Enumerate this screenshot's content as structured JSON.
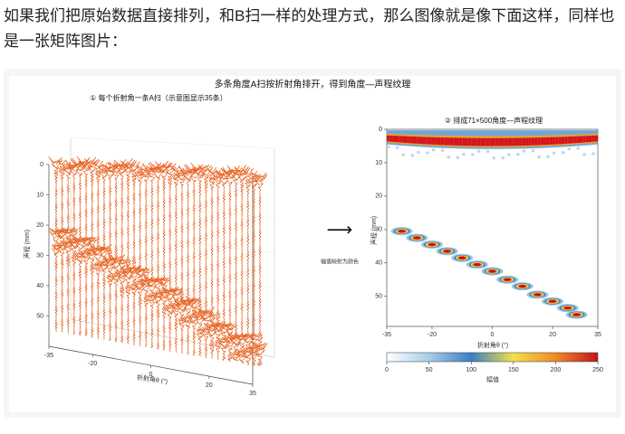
{
  "paragraph": "如果我们把原始数据直接排列，和B扫一样的处理方式，那么图像就是像下面这样，同样也是一张矩阵图片：",
  "figure": {
    "title": "多条角度A扫按折射角排开，得到角度—声程纹理",
    "left_panel": {
      "subtitle": "① 每个折射角一条A扫（示意图显示35条）",
      "traces": 35,
      "y_label": "声程 (mm)",
      "x_label": "折射角θ (°)",
      "xlim": [
        -35,
        35
      ],
      "ylim": [
        0,
        60
      ],
      "xticks": [
        -35,
        -20,
        0,
        20,
        35
      ],
      "yticks": [
        0,
        10,
        20,
        30,
        40,
        50
      ]
    },
    "arrow_note": "幅值映射为颜色",
    "right_panel": {
      "subtitle": "② 排成71×500角度—声程纹理",
      "y_label": "声程 (mm)",
      "x_label": "折射角θ (°)",
      "xlim": [
        -35,
        35
      ],
      "ylim": [
        0,
        59
      ],
      "xticks": [
        -35,
        -20,
        0,
        20,
        35
      ],
      "yticks": [
        0,
        10,
        20,
        30,
        40,
        50
      ],
      "reflectors": {
        "x": [
          -30,
          -25,
          -20,
          -15,
          -10,
          -5,
          0,
          5,
          10,
          15,
          20,
          25,
          28
        ],
        "y": [
          30.5,
          32.5,
          34.5,
          36.5,
          38.5,
          40.5,
          42.5,
          45,
          47,
          49.5,
          51.5,
          53.5,
          55.5
        ]
      },
      "colorbar": {
        "label": "幅值",
        "lim": [
          0,
          250
        ],
        "ticks": [
          0,
          50,
          100,
          150,
          200,
          250
        ]
      }
    }
  }
}
